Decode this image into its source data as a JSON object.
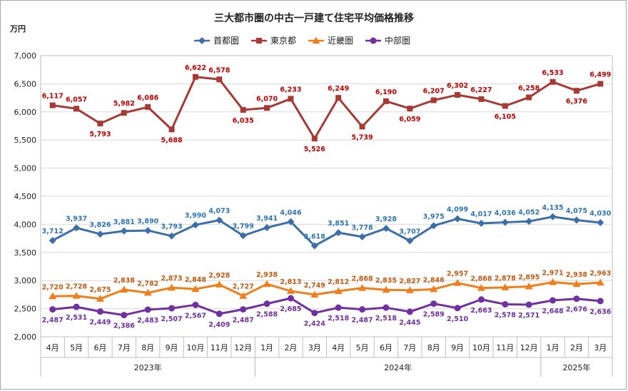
{
  "chart_data": {
    "type": "line",
    "title": "三大都市圏の中古一戸建て住宅平均価格推移",
    "unit_label": "万円",
    "ylim": [
      2000,
      7000
    ],
    "y_ticks": [
      "2,000",
      "2,500",
      "3,000",
      "3,500",
      "4,000",
      "4,500",
      "5,000",
      "5,500",
      "6,000",
      "6,500",
      "7,000"
    ],
    "categories": [
      "4月",
      "5月",
      "6月",
      "7月",
      "8月",
      "9月",
      "10月",
      "11月",
      "12月",
      "1月",
      "2月",
      "3月",
      "4月",
      "5月",
      "6月",
      "7月",
      "8月",
      "9月",
      "10月",
      "11月",
      "12月",
      "1月",
      "2月",
      "3月"
    ],
    "year_groups": [
      {
        "label": "2023年",
        "start": 0,
        "end": 8
      },
      {
        "label": "2024年",
        "start": 9,
        "end": 20
      },
      {
        "label": "2025年",
        "start": 21,
        "end": 23
      }
    ],
    "legend_position": "top",
    "grid": true,
    "series": [
      {
        "name": "首都圏",
        "color": "#3c6ea8",
        "label_color": "#2e74b5",
        "marker": "diamond",
        "values": [
          3712,
          3937,
          3826,
          3881,
          3890,
          3793,
          3990,
          4073,
          3799,
          3941,
          4046,
          3618,
          3851,
          3778,
          3928,
          3707,
          3975,
          4099,
          4017,
          4036,
          4052,
          4135,
          4075,
          4030
        ],
        "labels": [
          "3,712",
          "3,937",
          "3,826",
          "3,881",
          "3,890",
          "3,793",
          "3,990",
          "4,073",
          "3,799",
          "3,941",
          "4,046",
          "3,618",
          "3,851",
          "3,778",
          "3,928",
          "3,707",
          "3,975",
          "4,099",
          "4,017",
          "4,036",
          "4,052",
          "4,135",
          "4,075",
          "4,030"
        ]
      },
      {
        "name": "東京都",
        "color": "#a83a36",
        "label_color": "#c00000",
        "marker": "square",
        "values": [
          6117,
          6057,
          5793,
          5982,
          6086,
          5688,
          6622,
          6578,
          6035,
          6070,
          6233,
          5526,
          6249,
          5739,
          6190,
          6059,
          6207,
          6302,
          6227,
          6105,
          6258,
          6533,
          6376,
          6499
        ],
        "labels": [
          "6,117",
          "6,057",
          "5,793",
          "5,982",
          "6,086",
          "5,688",
          "6,622",
          "6,578",
          "6,035",
          "6,070",
          "6,233",
          "5,526",
          "6,249",
          "5,739",
          "6,190",
          "6,059",
          "6,207",
          "6,302",
          "6,227",
          "6,105",
          "6,258",
          "6,533",
          "6,376",
          "6,499"
        ]
      },
      {
        "name": "近畿圏",
        "color": "#f07e1a",
        "label_color": "#c55a11",
        "marker": "triangle",
        "values": [
          2720,
          2728,
          2675,
          2838,
          2782,
          2873,
          2848,
          2928,
          2727,
          2938,
          2813,
          2749,
          2812,
          2868,
          2835,
          2827,
          2846,
          2957,
          2868,
          2878,
          2895,
          2971,
          2938,
          2963
        ],
        "labels": [
          "2,720",
          "2,728",
          "2,675",
          "2,838",
          "2,782",
          "2,873",
          "2,848",
          "2,928",
          "2,727",
          "2,938",
          "2,813",
          "2,749",
          "2,812",
          "2,868",
          "2,835",
          "2,827",
          "2,846",
          "2,957",
          "2,868",
          "2,878",
          "2,895",
          "2,971",
          "2,938",
          "2,963"
        ]
      },
      {
        "name": "中部圏",
        "color": "#7030a0",
        "label_color": "#7030a0",
        "marker": "circle",
        "values": [
          2487,
          2531,
          2449,
          2386,
          2483,
          2507,
          2567,
          2409,
          2487,
          2588,
          2685,
          2424,
          2518,
          2487,
          2518,
          2445,
          2589,
          2510,
          2663,
          2578,
          2571,
          2648,
          2676,
          2636
        ],
        "labels": [
          "2,487",
          "2,531",
          "2,449",
          "2,386",
          "2,483",
          "2,507",
          "2,567",
          "2,409",
          "2,487",
          "2,588",
          "2,685",
          "2,424",
          "2,518",
          "2,487",
          "2,518",
          "2,445",
          "2,589",
          "2,510",
          "2,663",
          "2,578",
          "2,571",
          "2,648",
          "2,676",
          "2,636"
        ]
      }
    ]
  }
}
